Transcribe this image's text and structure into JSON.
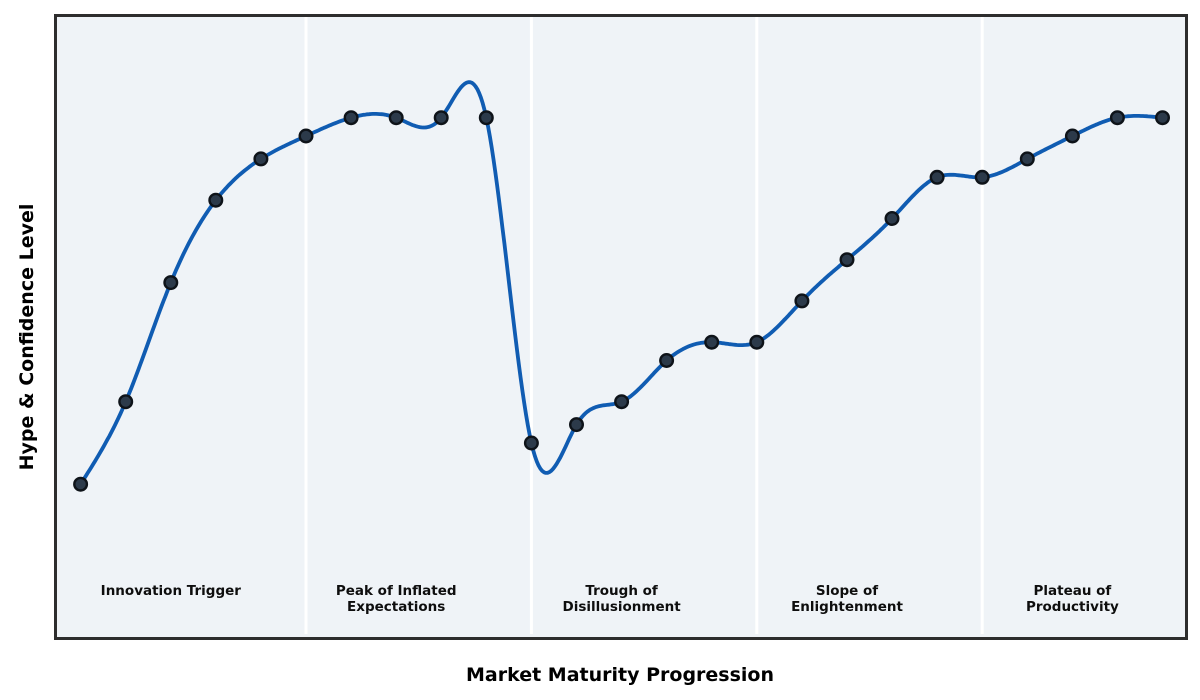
{
  "figure": {
    "background": "#ffffff",
    "plot_background": "#eff3f7",
    "border_color": "#2d2d2d"
  },
  "chart_data": {
    "type": "line",
    "title": "",
    "xlabel": "Market Maturity Progression",
    "ylabel": "Hype & Confidence Level",
    "x": [
      0,
      1,
      2,
      3,
      4,
      5,
      6,
      7,
      8,
      9,
      10,
      11,
      12,
      13,
      14,
      15,
      16,
      17,
      18,
      19,
      20,
      21,
      22,
      23,
      24
    ],
    "y": [
      10,
      28,
      54,
      72,
      81,
      86,
      90,
      90,
      90,
      90,
      19,
      23,
      28,
      37,
      41,
      41,
      50,
      59,
      68,
      77,
      77,
      81,
      86,
      90,
      90
    ],
    "xlim": [
      -0.5,
      24.5
    ],
    "yscale_note": "hype level 0-100, no numeric ticks or gridlines shown",
    "curve_style": "smooth natural cubic spline through markers",
    "grid": false,
    "legend": false,
    "line_color": "#105cb2",
    "marker_color": "#2c3a4a",
    "marker_edge_color": "#0e1319",
    "phase_divider_color": "#ffffff",
    "phases": [
      {
        "label": "Innovation Trigger",
        "x_start": -0.5,
        "x_end": 5,
        "label_x": 2
      },
      {
        "label": "Peak of Inflated\nExpectations",
        "x_start": 5,
        "x_end": 10,
        "label_x": 7
      },
      {
        "label": "Trough of\nDisillusionment",
        "x_start": 10,
        "x_end": 15,
        "label_x": 12
      },
      {
        "label": "Slope of\nEnlightenment",
        "x_start": 15,
        "x_end": 20,
        "label_x": 17
      },
      {
        "label": "Plateau of\nProductivity",
        "x_start": 20,
        "x_end": 24.5,
        "label_x": 22
      }
    ]
  }
}
